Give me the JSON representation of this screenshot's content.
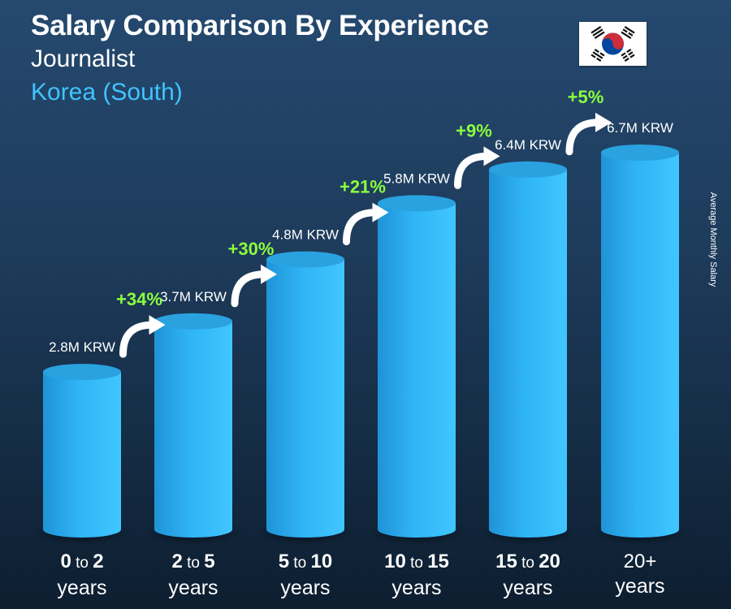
{
  "title": "Salary Comparison By Experience",
  "subtitle": "Journalist",
  "country": "Korea (South)",
  "side_label": "Average Monthly Salary",
  "flag_icon": "south-korea-flag-icon",
  "colors": {
    "bar": "#29aef2",
    "bar_light": "#47c8ff",
    "bar_top": "#2aa2e0",
    "growth": "#8bff3f",
    "country": "#40c4ff"
  },
  "chart_data": {
    "type": "bar",
    "categories": [
      {
        "from": "0",
        "to_word": "to",
        "to": "2",
        "unit": "years"
      },
      {
        "from": "2",
        "to_word": "to",
        "to": "5",
        "unit": "years"
      },
      {
        "from": "5",
        "to_word": "to",
        "to": "10",
        "unit": "years"
      },
      {
        "from": "10",
        "to_word": "to",
        "to": "15",
        "unit": "years"
      },
      {
        "from": "15",
        "to_word": "to",
        "to": "20",
        "unit": "years"
      },
      {
        "from": "20+",
        "to_word": "",
        "to": "",
        "unit": "years"
      }
    ],
    "values": [
      2.8,
      3.7,
      4.8,
      5.8,
      6.4,
      6.7
    ],
    "value_labels": [
      "2.8M KRW",
      "3.7M KRW",
      "4.8M KRW",
      "5.8M KRW",
      "6.4M KRW",
      "6.7M KRW"
    ],
    "growth_labels": [
      "+34%",
      "+30%",
      "+21%",
      "+9%",
      "+5%"
    ],
    "unit": "M KRW",
    "ylim": [
      0,
      6.7
    ],
    "grid": false,
    "legend": "none"
  }
}
